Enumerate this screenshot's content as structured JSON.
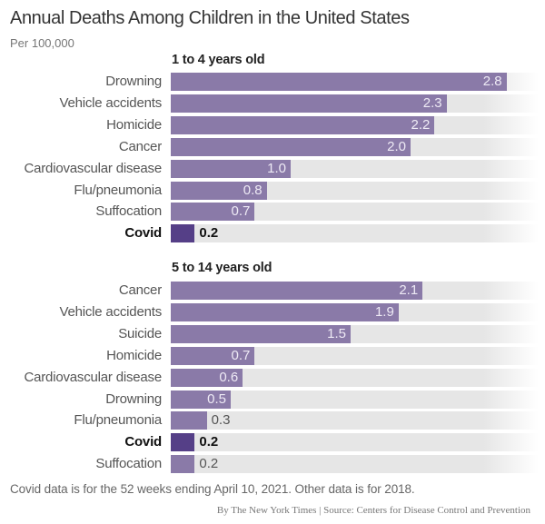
{
  "chart_data": [
    {
      "type": "bar",
      "orientation": "horizontal",
      "title": "Annual Deaths Among Children in the United States",
      "subtitle": "Per 100,000",
      "group": "1 to 4 years old",
      "categories": [
        "Drowning",
        "Vehicle accidents",
        "Homicide",
        "Cancer",
        "Cardiovascular disease",
        "Flu/pneumonia",
        "Suffocation",
        "Covid"
      ],
      "values": [
        2.8,
        2.3,
        2.2,
        2.0,
        1.0,
        0.8,
        0.7,
        0.2
      ],
      "labels": [
        "2.8",
        "2.3",
        "2.2",
        "2.0",
        "1.0",
        "0.8",
        "0.7",
        "0.2"
      ],
      "highlight": "Covid"
    },
    {
      "type": "bar",
      "orientation": "horizontal",
      "group": "5 to 14 years old",
      "categories": [
        "Cancer",
        "Vehicle accidents",
        "Suicide",
        "Homicide",
        "Cardiovascular disease",
        "Drowning",
        "Flu/pneumonia",
        "Covid",
        "Suffocation"
      ],
      "values": [
        2.1,
        1.9,
        1.5,
        0.7,
        0.6,
        0.5,
        0.3,
        0.2,
        0.2
      ],
      "labels": [
        "2.1",
        "1.9",
        "1.5",
        "0.7",
        "0.6",
        "0.5",
        "0.3",
        "0.2",
        "0.2"
      ],
      "highlight": "Covid"
    }
  ],
  "colors": {
    "bar": "#8a7aa8",
    "highlight": "#553f87",
    "track": "#e6e6e6"
  },
  "note": "Covid data is for the 52 weeks ending April 10, 2021. Other data is for 2018.",
  "source": "By The New York Times | Source: Centers for Disease Control and Prevention"
}
